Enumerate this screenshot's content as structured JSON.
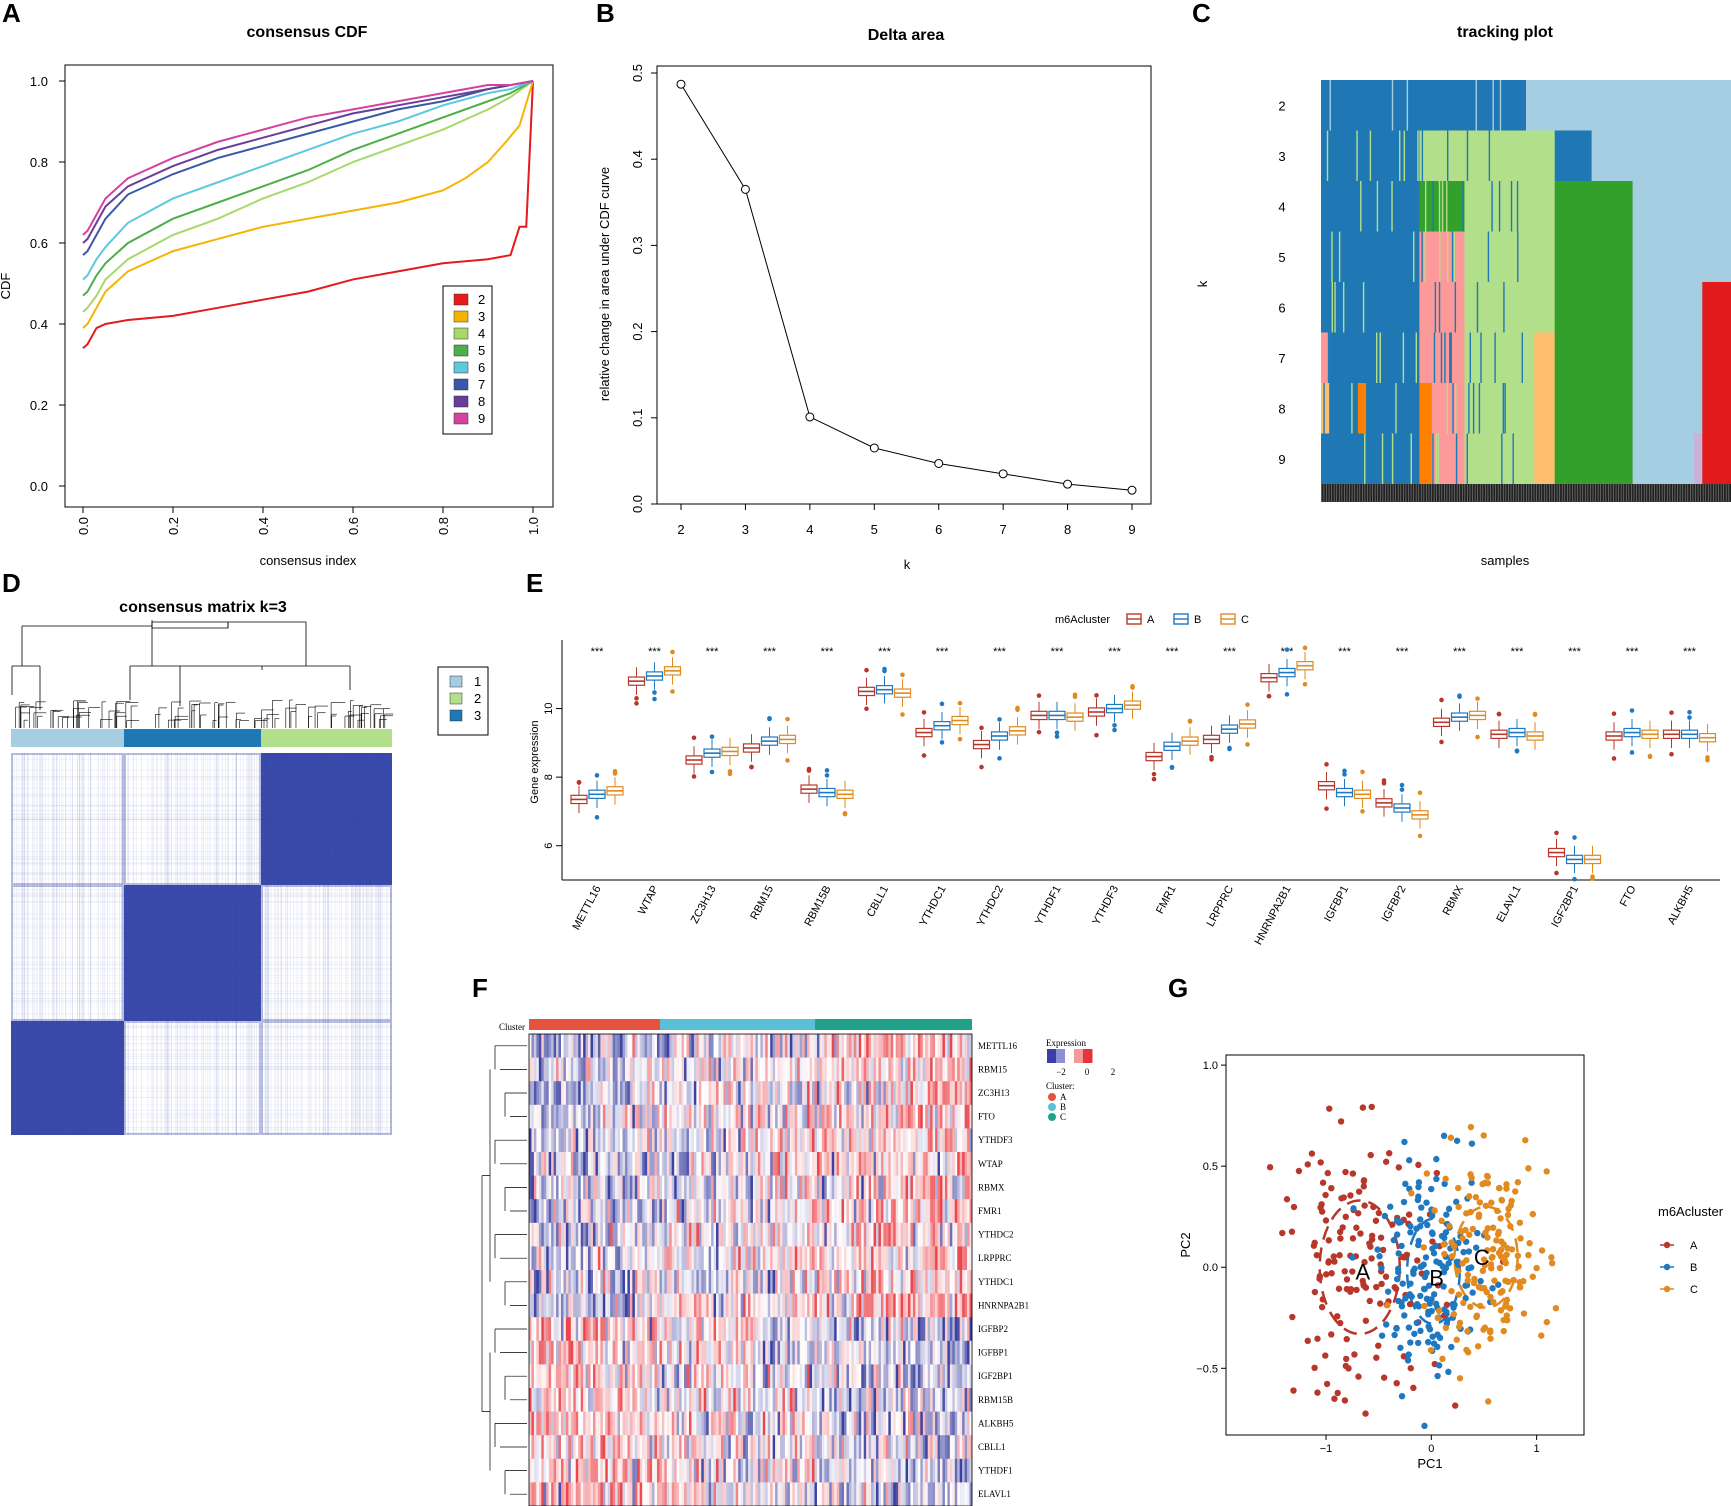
{
  "panels": {
    "A": {
      "label": "A"
    },
    "B": {
      "label": "B"
    },
    "C": {
      "label": "C"
    },
    "D": {
      "label": "D"
    },
    "E": {
      "label": "E"
    },
    "F": {
      "label": "F"
    },
    "G": {
      "label": "G"
    }
  },
  "colors": {
    "k2": "#e41a1c",
    "k3": "#f5b400",
    "k4": "#a6d96a",
    "k5": "#4daf4a",
    "k6": "#5ec8dc",
    "k7": "#3b58a8",
    "k8": "#6a3d9a",
    "k9": "#d4419e",
    "lightblue": "#a6cee3",
    "blue": "#1f78b4",
    "lightgreen": "#b2df8a",
    "green": "#33a02c",
    "pink": "#fb9a99",
    "red": "#e31a1c",
    "lightorange": "#fdbf6f",
    "orange": "#ff7f00",
    "lavender": "#cab2d6",
    "clusterA": "#b8372b",
    "clusterB": "#1f78c0",
    "clusterC": "#e08a20",
    "hmA": "#e5533e",
    "hmB": "#5bbfd8",
    "hmC": "#21a08a",
    "consensus": "#3a4aaa"
  },
  "chart_data": [
    {
      "id": "A",
      "type": "line",
      "title": "consensus CDF",
      "xlabel": "consensus index",
      "ylabel": "CDF",
      "xlim": [
        0,
        1
      ],
      "ylim": [
        0,
        1
      ],
      "xticks": [
        "0.0",
        "0.2",
        "0.4",
        "0.6",
        "0.8",
        "1.0"
      ],
      "yticks": [
        "0.0",
        "0.2",
        "0.4",
        "0.6",
        "0.8",
        "1.0"
      ],
      "series": [
        {
          "name": "2",
          "x": [
            0,
            0.01,
            0.03,
            0.05,
            0.1,
            0.2,
            0.3,
            0.4,
            0.5,
            0.6,
            0.7,
            0.8,
            0.9,
            0.95,
            0.97,
            0.985,
            1.0
          ],
          "values": [
            0.34,
            0.35,
            0.39,
            0.4,
            0.41,
            0.42,
            0.44,
            0.46,
            0.48,
            0.51,
            0.53,
            0.55,
            0.56,
            0.57,
            0.64,
            0.64,
            1.0
          ]
        },
        {
          "name": "3",
          "x": [
            0,
            0.01,
            0.03,
            0.05,
            0.1,
            0.2,
            0.3,
            0.4,
            0.5,
            0.6,
            0.7,
            0.8,
            0.85,
            0.9,
            0.94,
            0.97,
            1.0
          ],
          "values": [
            0.39,
            0.4,
            0.44,
            0.48,
            0.53,
            0.58,
            0.61,
            0.64,
            0.66,
            0.68,
            0.7,
            0.73,
            0.76,
            0.8,
            0.85,
            0.89,
            1.0
          ]
        },
        {
          "name": "4",
          "x": [
            0,
            0.01,
            0.03,
            0.05,
            0.1,
            0.2,
            0.3,
            0.4,
            0.5,
            0.6,
            0.7,
            0.8,
            0.9,
            0.95,
            1.0
          ],
          "values": [
            0.43,
            0.44,
            0.47,
            0.51,
            0.56,
            0.62,
            0.66,
            0.71,
            0.75,
            0.8,
            0.84,
            0.88,
            0.93,
            0.96,
            1.0
          ]
        },
        {
          "name": "5",
          "x": [
            0,
            0.01,
            0.03,
            0.05,
            0.1,
            0.2,
            0.3,
            0.4,
            0.5,
            0.6,
            0.7,
            0.8,
            0.9,
            0.95,
            1.0
          ],
          "values": [
            0.47,
            0.48,
            0.52,
            0.55,
            0.6,
            0.66,
            0.7,
            0.74,
            0.78,
            0.83,
            0.87,
            0.91,
            0.95,
            0.97,
            1.0
          ]
        },
        {
          "name": "6",
          "x": [
            0,
            0.01,
            0.03,
            0.05,
            0.1,
            0.2,
            0.3,
            0.4,
            0.5,
            0.6,
            0.7,
            0.8,
            0.9,
            0.95,
            1.0
          ],
          "values": [
            0.51,
            0.52,
            0.56,
            0.59,
            0.65,
            0.71,
            0.75,
            0.79,
            0.83,
            0.87,
            0.9,
            0.94,
            0.97,
            0.98,
            1.0
          ]
        },
        {
          "name": "7",
          "x": [
            0,
            0.01,
            0.03,
            0.05,
            0.1,
            0.2,
            0.3,
            0.4,
            0.5,
            0.6,
            0.7,
            0.8,
            0.9,
            0.95,
            1.0
          ],
          "values": [
            0.57,
            0.58,
            0.62,
            0.66,
            0.72,
            0.77,
            0.81,
            0.84,
            0.87,
            0.9,
            0.93,
            0.95,
            0.98,
            0.99,
            1.0
          ]
        },
        {
          "name": "8",
          "x": [
            0,
            0.01,
            0.03,
            0.05,
            0.1,
            0.2,
            0.3,
            0.4,
            0.5,
            0.6,
            0.7,
            0.8,
            0.9,
            0.95,
            1.0
          ],
          "values": [
            0.6,
            0.61,
            0.65,
            0.69,
            0.74,
            0.79,
            0.83,
            0.86,
            0.89,
            0.92,
            0.94,
            0.96,
            0.98,
            0.99,
            1.0
          ]
        },
        {
          "name": "9",
          "x": [
            0,
            0.01,
            0.03,
            0.05,
            0.1,
            0.2,
            0.3,
            0.4,
            0.5,
            0.6,
            0.7,
            0.8,
            0.9,
            0.95,
            1.0
          ],
          "values": [
            0.62,
            0.63,
            0.67,
            0.71,
            0.76,
            0.81,
            0.85,
            0.88,
            0.91,
            0.93,
            0.95,
            0.97,
            0.99,
            0.99,
            1.0
          ]
        }
      ],
      "legend": [
        "2",
        "3",
        "4",
        "5",
        "6",
        "7",
        "8",
        "9"
      ]
    },
    {
      "id": "B",
      "type": "line",
      "title": "Delta area",
      "xlabel": "k",
      "ylabel": "relative change in area under CDF curve",
      "x": [
        2,
        3,
        4,
        5,
        6,
        7,
        8,
        9
      ],
      "values": [
        0.487,
        0.365,
        0.101,
        0.065,
        0.047,
        0.035,
        0.023,
        0.016
      ],
      "xlim": [
        2,
        9
      ],
      "ylim": [
        0,
        0.5
      ],
      "xticks": [
        "2",
        "3",
        "4",
        "5",
        "6",
        "7",
        "8",
        "9"
      ],
      "yticks": [
        "0.0",
        "0.1",
        "0.2",
        "0.3",
        "0.4",
        "0.5"
      ]
    },
    {
      "id": "C",
      "type": "heatmap",
      "title": "tracking plot",
      "xlabel": "samples",
      "ylabel": "k",
      "rows": [
        "2",
        "3",
        "4",
        "5",
        "6",
        "7",
        "8",
        "9"
      ]
    },
    {
      "id": "D",
      "type": "heatmap",
      "title": "consensus matrix k=3",
      "legend": [
        "1",
        "2",
        "3"
      ]
    },
    {
      "id": "E",
      "type": "box",
      "xlabel": "",
      "ylabel": "Gene expression",
      "legend_title": "m6Acluster",
      "legend": [
        "A",
        "B",
        "C"
      ],
      "ylim": [
        5,
        12
      ],
      "yticks": [
        "6",
        "8",
        "10"
      ],
      "categories": [
        "METTL16",
        "WTAP",
        "ZC3H13",
        "RBM15",
        "RBM15B",
        "CBLL1",
        "YTHDC1",
        "YTHDC2",
        "YTHDF1",
        "YTHDF3",
        "FMR1",
        "LRPPRC",
        "HNRNPA2B1",
        "IGFBP1",
        "IGFBP2",
        "RBMX",
        "ELAVL1",
        "IGF2BP1",
        "FTO",
        "ALKBH5"
      ],
      "significance": [
        "***",
        "***",
        "***",
        "***",
        "***",
        "***",
        "***",
        "***",
        "***",
        "***",
        "***",
        "***",
        "***",
        "***",
        "***",
        "***",
        "***",
        "***",
        "***",
        "***"
      ],
      "series": [
        {
          "name": "A",
          "values": [
            7.35,
            10.8,
            8.5,
            8.85,
            7.65,
            10.5,
            9.3,
            8.95,
            9.8,
            9.9,
            8.6,
            9.1,
            10.9,
            7.75,
            7.25,
            9.6,
            9.25,
            5.8,
            9.2,
            9.25
          ]
        },
        {
          "name": "B",
          "values": [
            7.5,
            10.95,
            8.7,
            9.05,
            7.55,
            10.55,
            9.5,
            9.2,
            9.8,
            10.0,
            8.9,
            9.4,
            11.05,
            7.55,
            7.1,
            9.75,
            9.3,
            5.6,
            9.3,
            9.25
          ]
        },
        {
          "name": "C",
          "values": [
            7.6,
            11.1,
            8.75,
            9.1,
            7.5,
            10.45,
            9.65,
            9.35,
            9.75,
            10.1,
            9.05,
            9.55,
            11.25,
            7.5,
            6.9,
            9.8,
            9.2,
            5.6,
            9.25,
            9.15
          ]
        }
      ]
    },
    {
      "id": "F",
      "type": "heatmap",
      "cluster_label": "Cluster",
      "legend_title": "Expression",
      "legend_ticks": [
        "−2",
        "0",
        "2"
      ],
      "cluster_legend_title": "Cluster:",
      "cluster_legend": [
        "A",
        "B",
        "C"
      ],
      "rows": [
        "METTL16",
        "RBM15",
        "ZC3H13",
        "FTO",
        "YTHDF3",
        "WTAP",
        "RBMX",
        "FMR1",
        "YTHDC2",
        "LRPPRC",
        "YTHDC1",
        "HNRNPA2B1",
        "IGFBP2",
        "IGFBP1",
        "IGF2BP1",
        "RBM15B",
        "ALKBH5",
        "CBLL1",
        "YTHDF1",
        "ELAVL1"
      ]
    },
    {
      "id": "G",
      "type": "scatter",
      "xlabel": "PC1",
      "ylabel": "PC2",
      "xlim": [
        -1.95,
        1.45
      ],
      "ylim": [
        -0.83,
        1.05
      ],
      "xticks": [
        "−1",
        "0",
        "1"
      ],
      "yticks": [
        "−0.5",
        "0.0",
        "0.5",
        "1.0"
      ],
      "legend_title": "m6Acluster",
      "legend": [
        "A",
        "B",
        "C"
      ],
      "centroids": [
        {
          "label": "A",
          "x": -0.65,
          "y": -0.02
        },
        {
          "label": "B",
          "x": 0.05,
          "y": -0.05
        },
        {
          "label": "C",
          "x": 0.48,
          "y": 0.05
        }
      ]
    }
  ]
}
